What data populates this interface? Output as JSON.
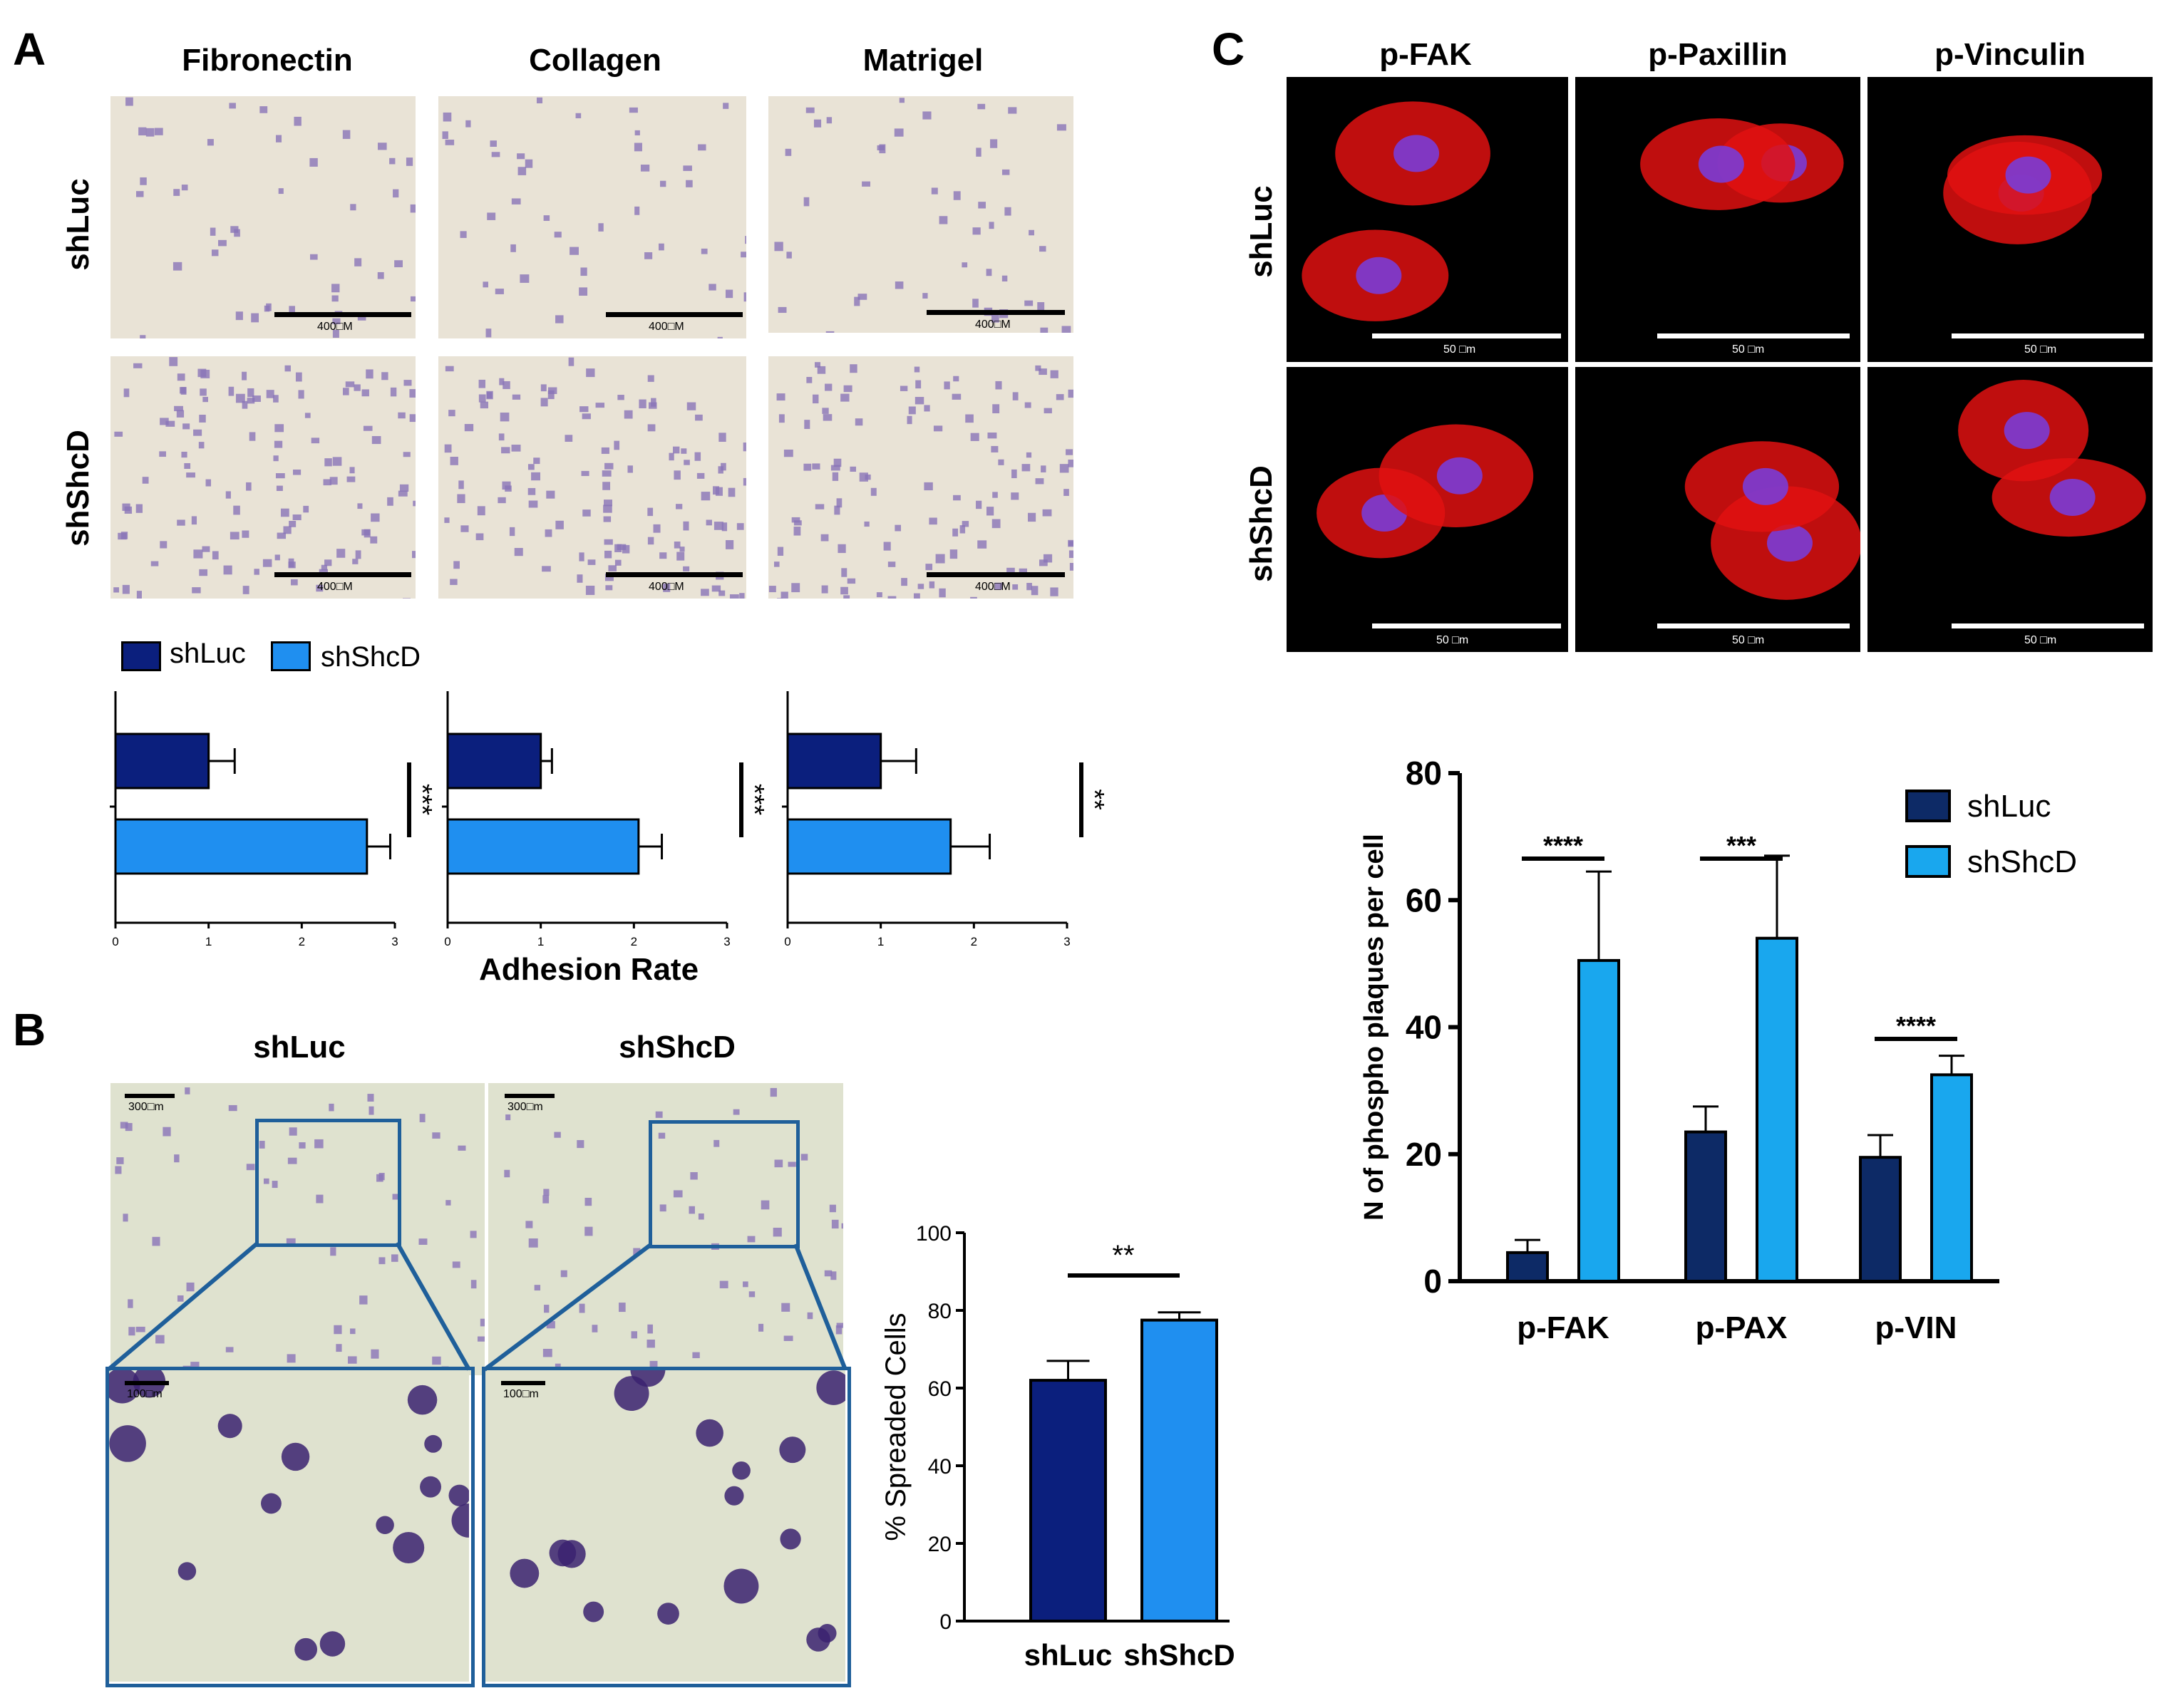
{
  "figure": {
    "panels": {
      "A": {
        "letter": "A",
        "columns": [
          "Fibronectin",
          "Collagen",
          "Matrigel"
        ],
        "rows": [
          "shLuc",
          "shShcD"
        ],
        "scale_label": "400□M",
        "legend": {
          "shLuc": "shLuc",
          "shShcD": "shShcD"
        },
        "xlabel": "Adhesion Rate",
        "colors": {
          "shLuc": "#0b1f7d",
          "shShcD": "#1f8ff0",
          "bright_bg": "#e9e3d6",
          "cell": "#8a74b8"
        }
      },
      "B": {
        "letter": "B",
        "columns": [
          "shLuc",
          "shShcD"
        ],
        "scale_top": "300□m",
        "scale_zoom": "100□m",
        "box_color": "#1f5f9a"
      },
      "C": {
        "letter": "C",
        "columns": [
          "p-FAK",
          "p-Paxillin",
          "p-Vinculin"
        ],
        "rows": [
          "shLuc",
          "shShcD"
        ],
        "scale_label": "50 □m",
        "colors": {
          "shLuc": "#0d2a66",
          "shShcD": "#19a7ee"
        }
      }
    }
  },
  "chart_data": [
    {
      "type": "bar",
      "orientation": "horizontal",
      "panel": "A",
      "subtitle": "Fibronectin",
      "categories": [
        "shLuc",
        "shShcD"
      ],
      "values": [
        1.0,
        2.7
      ],
      "errors": [
        0.28,
        0.25
      ],
      "xlim": [
        0,
        3
      ],
      "xticks": [
        "0",
        "1",
        "2",
        "3"
      ],
      "significance": "***"
    },
    {
      "type": "bar",
      "orientation": "horizontal",
      "panel": "A",
      "subtitle": "Collagen",
      "categories": [
        "shLuc",
        "shShcD"
      ],
      "values": [
        1.0,
        2.05
      ],
      "errors": [
        0.12,
        0.25
      ],
      "xlim": [
        0,
        3
      ],
      "xticks": [
        "0",
        "1",
        "2",
        "3"
      ],
      "significance": "***"
    },
    {
      "type": "bar",
      "orientation": "horizontal",
      "panel": "A",
      "subtitle": "Matrigel",
      "categories": [
        "shLuc",
        "shShcD"
      ],
      "values": [
        1.0,
        1.75
      ],
      "errors": [
        0.38,
        0.42
      ],
      "xlim": [
        0,
        3
      ],
      "xticks": [
        "0",
        "1",
        "2",
        "3"
      ],
      "significance": "**"
    },
    {
      "type": "bar",
      "panel": "B",
      "categories": [
        "shLuc",
        "shShcD"
      ],
      "values": [
        62,
        77.5
      ],
      "errors": [
        5,
        2
      ],
      "ylabel": "% Spreaded Cells",
      "ylim": [
        0,
        100
      ],
      "yticks": [
        "0",
        "20",
        "40",
        "60",
        "80",
        "100"
      ],
      "significance": "**"
    },
    {
      "type": "bar",
      "panel": "C",
      "categories": [
        "p-FAK",
        "p-PAX",
        "p-VIN"
      ],
      "series": [
        {
          "name": "shLuc",
          "values": [
            4.5,
            23.5,
            19.5
          ],
          "errors": [
            2,
            4,
            3.5
          ]
        },
        {
          "name": "shShcD",
          "values": [
            50.5,
            54,
            32.5
          ],
          "errors": [
            14,
            13,
            3
          ]
        }
      ],
      "significance": [
        "****",
        "***",
        "****"
      ],
      "ylabel": "N of phospho plaques per cell",
      "ylim": [
        0,
        80
      ],
      "yticks": [
        "0",
        "20",
        "40",
        "60",
        "80"
      ],
      "legend_position": "top-right"
    }
  ]
}
